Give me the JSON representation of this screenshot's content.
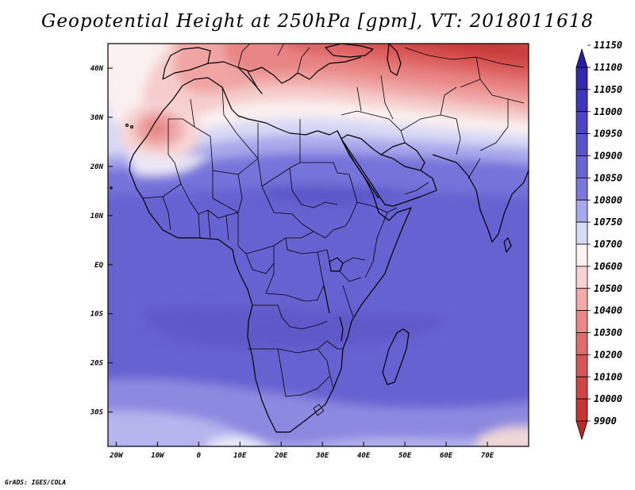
{
  "title": "Geopotential Height at 250hPa [gpm], VT: 2018011618",
  "credit": "GrADS: IGES/COLA",
  "map": {
    "lon_range": [
      -22,
      80
    ],
    "lat_range": [
      -37,
      45
    ],
    "lon_ticks": [
      {
        "value": -20,
        "label": "20W"
      },
      {
        "value": -10,
        "label": "10W"
      },
      {
        "value": 0,
        "label": "0"
      },
      {
        "value": 10,
        "label": "10E"
      },
      {
        "value": 20,
        "label": "20E"
      },
      {
        "value": 30,
        "label": "30E"
      },
      {
        "value": 40,
        "label": "40E"
      },
      {
        "value": 50,
        "label": "50E"
      },
      {
        "value": 60,
        "label": "60E"
      },
      {
        "value": 70,
        "label": "70E"
      }
    ],
    "lat_ticks": [
      {
        "value": 40,
        "label": "40N"
      },
      {
        "value": 30,
        "label": "30N"
      },
      {
        "value": 20,
        "label": "20N"
      },
      {
        "value": 10,
        "label": "10N"
      },
      {
        "value": 0,
        "label": "EQ"
      },
      {
        "value": -10,
        "label": "10S"
      },
      {
        "value": -20,
        "label": "20S"
      },
      {
        "value": -30,
        "label": "30S"
      }
    ]
  },
  "legend": {
    "levels": [
      "11150",
      "11100",
      "11050",
      "11000",
      "10950",
      "10900",
      "10850",
      "10800",
      "10750",
      "10700",
      "10600",
      "10500",
      "10400",
      "10300",
      "10200",
      "10100",
      "10000",
      "9900"
    ],
    "colors": [
      "#2a1f9c",
      "#3528b0",
      "#4035bd",
      "#4e45c6",
      "#5a54cc",
      "#6964d4",
      "#7a78dc",
      "#a8a8ec",
      "#d9dbf6",
      "#fbf2f2",
      "#f8d2d2",
      "#f2aaaa",
      "#ea8888",
      "#e06b6b",
      "#d85555",
      "#cf4444",
      "#c53535",
      "#b52b2b"
    ]
  }
}
